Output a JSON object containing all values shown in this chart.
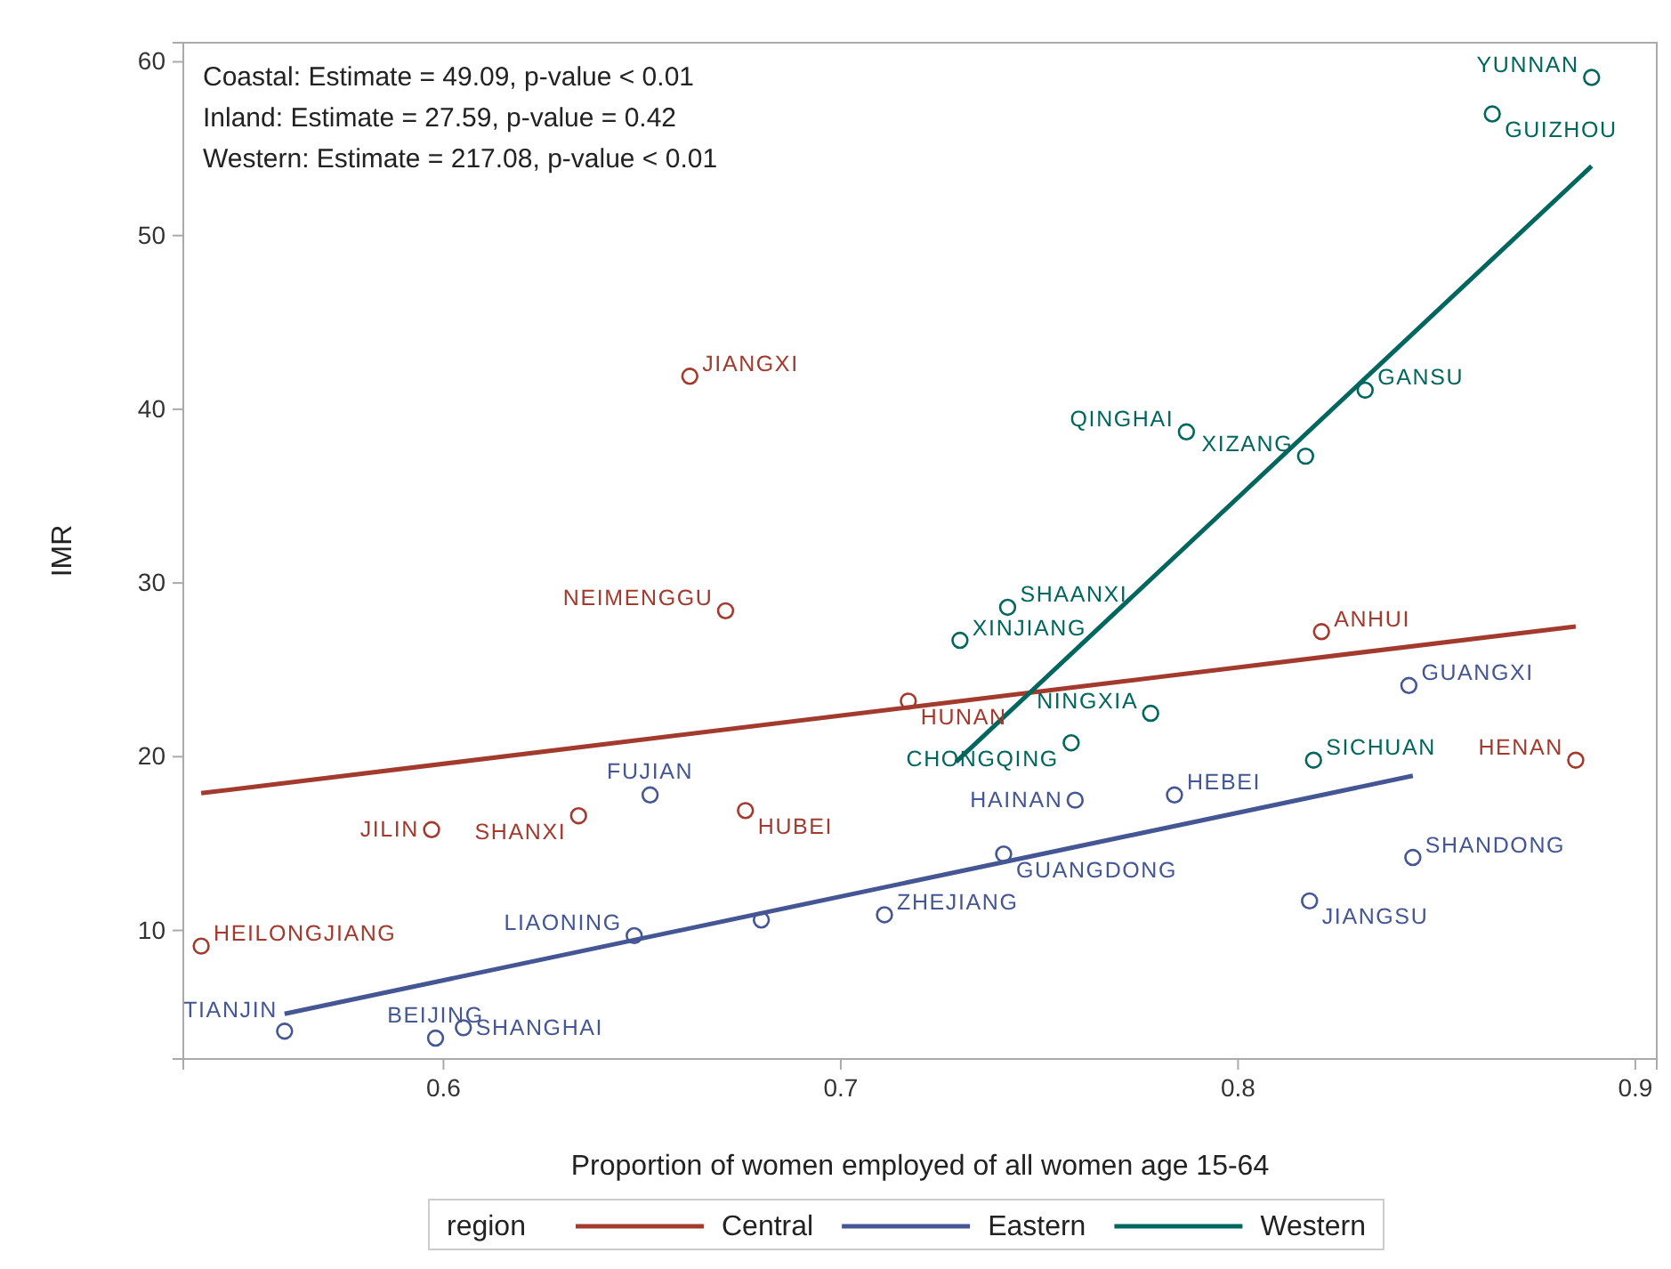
{
  "chart_data": {
    "type": "scatter",
    "xlabel": "Proportion of women employed of all women age 15-64",
    "ylabel": "IMR",
    "legend_title": "region",
    "legend": "bottom",
    "grid": false,
    "xlim": [
      0.5345,
      0.9054
    ],
    "xticks": [
      0.6,
      0.7,
      0.8,
      0.9
    ],
    "ylim": [
      2.6,
      61.1
    ],
    "yticks": [
      10,
      20,
      30,
      40,
      50,
      60
    ],
    "series": [
      {
        "color": "#a23a2e",
        "marker": "circle",
        "x": [
          0.662,
          0.671,
          0.597,
          0.634,
          0.676,
          0.539,
          0.717,
          0.821,
          0.885
        ],
        "values": [
          41.9,
          28.4,
          15.8,
          16.6,
          16.9,
          9.1,
          23.2,
          27.2,
          19.8
        ]
      },
      {
        "color": "#445694",
        "marker": "circle",
        "x": [
          0.652,
          0.648,
          0.68,
          0.56,
          0.598,
          0.605,
          0.711,
          0.741,
          0.759,
          0.784,
          0.818,
          0.844,
          0.843
        ],
        "values": [
          17.8,
          9.7,
          10.6,
          4.2,
          3.8,
          4.4,
          10.9,
          14.4,
          17.5,
          17.8,
          11.7,
          14.2,
          24.1
        ]
      },
      {
        "color": "#01665e",
        "marker": "circle",
        "x": [
          0.889,
          0.864,
          0.832,
          0.787,
          0.817,
          0.742,
          0.73,
          0.778,
          0.758,
          0.819
        ],
        "values": [
          59.1,
          57.0,
          41.1,
          38.7,
          37.3,
          28.6,
          26.7,
          22.5,
          20.8,
          19.8
        ]
      },
      {
        "type": "line",
        "name": "Central",
        "color": "#a23a2e",
        "x": [
          0.539,
          0.885
        ],
        "values": [
          17.9,
          27.5
        ]
      },
      {
        "type": "line",
        "name": "Eastern",
        "color": "#445694",
        "x": [
          0.56,
          0.844
        ],
        "values": [
          5.2,
          18.9
        ]
      },
      {
        "type": "line",
        "name": "Western",
        "color": "#01665e",
        "x": [
          0.729,
          0.889
        ],
        "values": [
          19.7,
          54.0
        ]
      }
    ],
    "annotations": [
      "Coastal: Estimate = 49.09, p-value < 0.01",
      "Inland: Estimate = 27.59, p-value = 0.42",
      "Western: Estimate = 217.08, p-value < 0.01",
      {
        "text": "JIANGXI",
        "x": 0.662,
        "y": 41.9
      },
      {
        "text": "NEIMENGGU",
        "x": 0.671,
        "y": 28.4
      },
      {
        "text": "JILIN",
        "x": 0.597,
        "y": 15.8
      },
      {
        "text": "SHANXI",
        "x": 0.634,
        "y": 16.6
      },
      {
        "text": "HUBEI",
        "x": 0.676,
        "y": 16.9
      },
      {
        "text": "HEILONGJIANG",
        "x": 0.539,
        "y": 9.1
      },
      {
        "text": "HUNAN",
        "x": 0.717,
        "y": 23.2
      },
      {
        "text": "ANHUI",
        "x": 0.821,
        "y": 27.2
      },
      {
        "text": "HENAN",
        "x": 0.885,
        "y": 19.8
      },
      {
        "text": "FUJIAN",
        "x": 0.652,
        "y": 17.8
      },
      {
        "text": "LIAONING",
        "x": 0.648,
        "y": 9.7
      },
      {
        "text": "TIANJIN",
        "x": 0.56,
        "y": 4.2
      },
      {
        "text": "BEIJING",
        "x": 0.598,
        "y": 3.8
      },
      {
        "text": "SHANGHAI",
        "x": 0.605,
        "y": 4.4
      },
      {
        "text": "ZHEJIANG",
        "x": 0.711,
        "y": 10.9
      },
      {
        "text": "GUANGDONG",
        "x": 0.741,
        "y": 14.4
      },
      {
        "text": "HAINAN",
        "x": 0.759,
        "y": 17.5
      },
      {
        "text": "HEBEI",
        "x": 0.784,
        "y": 17.8
      },
      {
        "text": "JIANGSU",
        "x": 0.818,
        "y": 11.7
      },
      {
        "text": "SHANDONG",
        "x": 0.844,
        "y": 14.2
      },
      {
        "text": "GUANGXI",
        "x": 0.843,
        "y": 24.1
      },
      {
        "text": "YUNNAN",
        "x": 0.889,
        "y": 59.1
      },
      {
        "text": "GUIZHOU",
        "x": 0.864,
        "y": 57.0
      },
      {
        "text": "GANSU",
        "x": 0.832,
        "y": 41.1
      },
      {
        "text": "QINGHAI",
        "x": 0.787,
        "y": 38.7
      },
      {
        "text": "XIZANG",
        "x": 0.817,
        "y": 37.3
      },
      {
        "text": "SHAANXI",
        "x": 0.742,
        "y": 28.6
      },
      {
        "text": "XINJIANG",
        "x": 0.73,
        "y": 26.7
      },
      {
        "text": "NINGXIA",
        "x": 0.778,
        "y": 22.5
      },
      {
        "text": "CHONGQING",
        "x": 0.758,
        "y": 20.8
      },
      {
        "text": "SICHUAN",
        "x": 0.819,
        "y": 19.8
      }
    ]
  }
}
